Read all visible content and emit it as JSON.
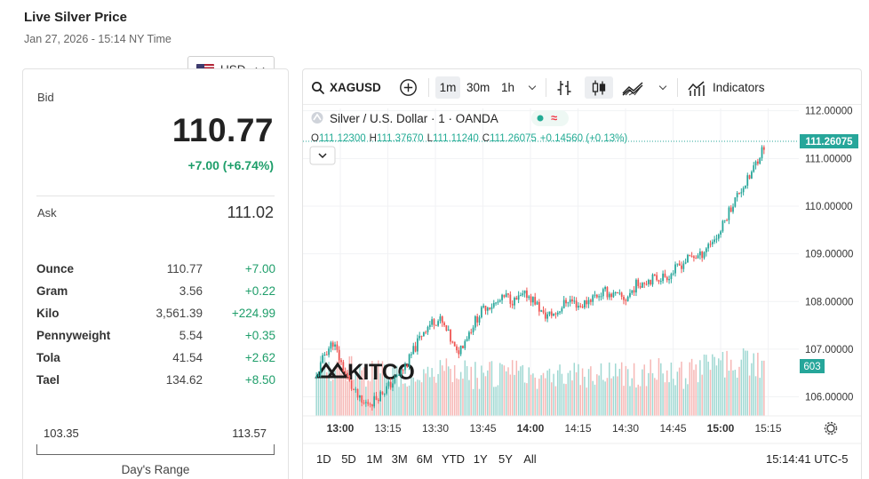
{
  "header": {
    "title": "Live Silver Price",
    "subtitle": "Jan 27, 2026 - 15:14 NY Time"
  },
  "currency_select": {
    "value": "USD",
    "icon": "us-flag-icon"
  },
  "quote": {
    "bid_label": "Bid",
    "bid": "110.77",
    "change": "+7.00 (+6.74%)",
    "ask_label": "Ask",
    "ask": "111.02"
  },
  "units": [
    {
      "name": "Ounce",
      "value": "110.77",
      "change": "+7.00"
    },
    {
      "name": "Gram",
      "value": "3.56",
      "change": "+0.22"
    },
    {
      "name": "Kilo",
      "value": "3,561.39",
      "change": "+224.99"
    },
    {
      "name": "Pennyweight",
      "value": "5.54",
      "change": "+0.35"
    },
    {
      "name": "Tola",
      "value": "41.54",
      "change": "+2.62"
    },
    {
      "name": "Tael",
      "value": "134.62",
      "change": "+8.50"
    }
  ],
  "days_range": {
    "low": "103.35",
    "high": "113.57",
    "label": "Day's Range"
  },
  "toolbar": {
    "symbol": "XAGUSD",
    "intervals": [
      "1m",
      "30m",
      "1h"
    ],
    "active_interval": "1m",
    "indicators_label": "Indicators"
  },
  "legend": {
    "title": "Silver / U.S. Dollar · 1 · OANDA",
    "o_label": "O",
    "o": "111.12300",
    "h_label": "H",
    "h": "111.37670",
    "l_label": "L",
    "l": "111.11240",
    "c_label": "C",
    "c": "111.26075",
    "chg": "+0.14560 (+0.13%)"
  },
  "watermark": "KITCO",
  "bottom": {
    "ranges": [
      "1D",
      "5D",
      "1M",
      "3M",
      "6M",
      "YTD",
      "1Y",
      "5Y",
      "All"
    ],
    "clock": "15:14:41 UTC-5"
  },
  "colors": {
    "up": "#26a69a",
    "down": "#ef5350",
    "accent_green": "#1e9e6a",
    "up_volume": "#9fd8d2",
    "down_volume": "#f6b7b5"
  },
  "chart_data": {
    "type": "candlestick",
    "x_ticks": [
      "13:00",
      "13:15",
      "13:30",
      "13:45",
      "14:00",
      "14:15",
      "14:30",
      "14:45",
      "15:00",
      "15:15"
    ],
    "y_ticks": [
      "112.00000",
      "111.00000",
      "110.00000",
      "109.00000",
      "108.00000",
      "107.00000",
      "106.00000"
    ],
    "ylim": [
      105.6,
      112.05
    ],
    "last_price_label": "111.26075",
    "volume_label": "603",
    "price_path": [
      [
        0,
        106.4
      ],
      [
        4,
        106.9
      ],
      [
        8,
        107.15
      ],
      [
        12,
        106.7
      ],
      [
        17,
        106.2
      ],
      [
        22,
        105.85
      ],
      [
        27,
        105.9
      ],
      [
        32,
        106.1
      ],
      [
        38,
        106.35
      ],
      [
        44,
        106.7
      ],
      [
        52,
        107.4
      ],
      [
        57,
        107.6
      ],
      [
        60,
        107.6
      ],
      [
        64,
        107.3
      ],
      [
        68,
        106.9
      ],
      [
        72,
        107.2
      ],
      [
        77,
        107.6
      ],
      [
        82,
        107.9
      ],
      [
        87,
        107.95
      ],
      [
        92,
        108.1
      ],
      [
        96,
        108.0
      ],
      [
        102,
        108.15
      ],
      [
        106,
        108.0
      ],
      [
        110,
        107.7
      ],
      [
        116,
        107.75
      ],
      [
        122,
        108.05
      ],
      [
        128,
        107.9
      ],
      [
        134,
        108.1
      ],
      [
        140,
        108.2
      ],
      [
        146,
        108.1
      ],
      [
        150,
        108.05
      ],
      [
        155,
        108.35
      ],
      [
        160,
        108.45
      ],
      [
        166,
        108.5
      ],
      [
        171,
        108.55
      ],
      [
        176,
        108.75
      ],
      [
        182,
        108.95
      ],
      [
        186,
        108.95
      ],
      [
        190,
        109.2
      ],
      [
        195,
        109.4
      ],
      [
        200,
        109.9
      ],
      [
        205,
        110.3
      ],
      [
        210,
        110.6
      ],
      [
        214,
        111.0
      ],
      [
        217,
        111.26
      ]
    ],
    "volume_bars": 218
  }
}
